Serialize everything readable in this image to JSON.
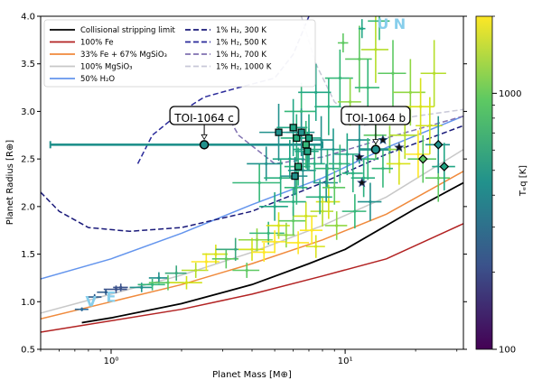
{
  "chart_data": {
    "type": "scatter",
    "title": "",
    "xlabel": "Planet Mass [M⊕]",
    "ylabel": "Planet Radius [R⊕]",
    "xscale": "log",
    "xlim": [
      0.5,
      32
    ],
    "ylim": [
      0.5,
      4.0
    ],
    "xticks": [
      {
        "value": 1,
        "label": "10⁰"
      },
      {
        "value": 10,
        "label": "10¹"
      }
    ],
    "yticks": [
      0.5,
      1.0,
      1.5,
      2.0,
      2.5,
      3.0,
      3.5,
      4.0
    ],
    "yticklabels": [
      "0.5",
      "1.0",
      "1.5",
      "2.0",
      "2.5",
      "3.0",
      "3.5",
      "4.0"
    ],
    "legend_position": "top-left",
    "legend": [
      {
        "label": "Collisional stripping limit",
        "color": "#000000",
        "dash": "solid"
      },
      {
        "label": "100% Fe",
        "color": "#b22222",
        "dash": "solid"
      },
      {
        "label": "33% Fe + 67% MgSiO₃",
        "color": "#f08a3c",
        "dash": "solid"
      },
      {
        "label": "100% MgSiO₃",
        "color": "#c8c8c8",
        "dash": "solid"
      },
      {
        "label": "50% H₂O",
        "color": "#6495ed",
        "dash": "solid"
      },
      {
        "label": "1% H₂, 300 K",
        "color": "#1a1a7a",
        "dash": "dashed"
      },
      {
        "label": "1% H₂, 500 K",
        "color": "#2a2a9a",
        "dash": "dashed"
      },
      {
        "label": "1% H₂, 700 K",
        "color": "#8070b0",
        "dash": "dashed"
      },
      {
        "label": "1% H₂, 1000 K",
        "color": "#c8c8d8",
        "dash": "dashed"
      }
    ],
    "colorbar": {
      "label": "Tₑq [K]",
      "ticks": [
        {
          "value": 100,
          "label": "100"
        },
        {
          "value": 1000,
          "label": "1000"
        }
      ],
      "range": [
        100,
        2000
      ],
      "colormap": [
        "#440154",
        "#3b528b",
        "#21918c",
        "#5ec962",
        "#fde725"
      ]
    },
    "curves": [
      {
        "name": "Collisional stripping limit",
        "color": "#000000",
        "dash": "solid",
        "width": 1.8,
        "points": [
          [
            0.75,
            0.78
          ],
          [
            1.0,
            0.83
          ],
          [
            2.0,
            0.98
          ],
          [
            4.0,
            1.18
          ],
          [
            7.0,
            1.4
          ],
          [
            10.0,
            1.55
          ],
          [
            15.0,
            1.8
          ],
          [
            20.0,
            1.98
          ],
          [
            32.0,
            2.25
          ]
        ]
      },
      {
        "name": "100% Fe",
        "color": "#b22222",
        "dash": "solid",
        "width": 1.5,
        "points": [
          [
            0.5,
            0.68
          ],
          [
            1.0,
            0.8
          ],
          [
            2.0,
            0.92
          ],
          [
            4.0,
            1.08
          ],
          [
            8.0,
            1.27
          ],
          [
            15.0,
            1.45
          ],
          [
            32.0,
            1.82
          ]
        ]
      },
      {
        "name": "33% Fe + 67% MgSiO₃",
        "color": "#f08a3c",
        "dash": "solid",
        "width": 1.5,
        "points": [
          [
            0.5,
            0.82
          ],
          [
            1.0,
            1.0
          ],
          [
            2.0,
            1.18
          ],
          [
            4.0,
            1.4
          ],
          [
            8.0,
            1.65
          ],
          [
            15.0,
            1.92
          ],
          [
            32.0,
            2.37
          ]
        ]
      },
      {
        "name": "100% MgSiO₃",
        "color": "#c8c8c8",
        "dash": "solid",
        "width": 1.5,
        "points": [
          [
            0.5,
            0.88
          ],
          [
            1.0,
            1.08
          ],
          [
            2.0,
            1.28
          ],
          [
            4.0,
            1.52
          ],
          [
            8.0,
            1.8
          ],
          [
            15.0,
            2.1
          ],
          [
            32.0,
            2.6
          ]
        ]
      },
      {
        "name": "50% H₂O",
        "color": "#6495ed",
        "dash": "solid",
        "width": 1.5,
        "points": [
          [
            0.5,
            1.24
          ],
          [
            1.0,
            1.45
          ],
          [
            2.0,
            1.72
          ],
          [
            4.0,
            2.02
          ],
          [
            8.0,
            2.3
          ],
          [
            15.0,
            2.62
          ],
          [
            32.0,
            2.95
          ]
        ]
      },
      {
        "name": "1% H₂, 300 K",
        "color": "#1a1a7a",
        "dash": "dashed",
        "width": 1.5,
        "points": [
          [
            0.5,
            2.15
          ],
          [
            0.6,
            1.95
          ],
          [
            0.8,
            1.78
          ],
          [
            1.2,
            1.74
          ],
          [
            2.0,
            1.78
          ],
          [
            4.0,
            1.95
          ],
          [
            8.0,
            2.25
          ],
          [
            15.0,
            2.55
          ],
          [
            32.0,
            2.85
          ]
        ]
      },
      {
        "name": "1% H₂, 500 K",
        "color": "#2a2a9a",
        "dash": "dashed",
        "width": 1.5,
        "points": [
          [
            1.3,
            2.45
          ],
          [
            1.5,
            2.75
          ],
          [
            2.0,
            3.0
          ],
          [
            2.5,
            3.15
          ],
          [
            3.5,
            3.25
          ],
          [
            5.0,
            3.35
          ],
          [
            6.0,
            3.6
          ],
          [
            7.0,
            4.0
          ]
        ]
      },
      {
        "name": "1% H₂, 700 K",
        "color": "#8070b0",
        "dash": "dashed",
        "width": 1.5,
        "points": [
          [
            3.0,
            3.05
          ],
          [
            3.5,
            2.75
          ],
          [
            5.0,
            2.45
          ],
          [
            8.0,
            2.52
          ],
          [
            15.0,
            2.72
          ],
          [
            32.0,
            2.95
          ]
        ]
      },
      {
        "name": "1% H₂, 1000 K",
        "color": "#c8c8d8",
        "dash": "dashed",
        "width": 1.5,
        "points": [
          [
            6.5,
            4.0
          ],
          [
            7.5,
            3.5
          ],
          [
            9.0,
            3.1
          ],
          [
            12.0,
            2.85
          ],
          [
            20.0,
            2.95
          ],
          [
            32.0,
            3.02
          ]
        ]
      }
    ],
    "points": [
      {
        "x": 0.75,
        "y": 0.92,
        "xerr": 0.05,
        "yerr": 0.02,
        "color": "#2c6a9a"
      },
      {
        "x": 0.85,
        "y": 1.05,
        "xerr": 0.06,
        "yerr": 0.03,
        "color": "#2c5a8a"
      },
      {
        "x": 0.95,
        "y": 1.1,
        "xerr": 0.08,
        "yerr": 0.03,
        "color": "#2c5a8a"
      },
      {
        "x": 1.05,
        "y": 1.13,
        "xerr": 0.12,
        "yerr": 0.04,
        "color": "#3b528b"
      },
      {
        "x": 1.1,
        "y": 1.15,
        "xerr": 0.08,
        "yerr": 0.04,
        "color": "#3b528b"
      },
      {
        "x": 1.35,
        "y": 1.15,
        "xerr": 0.15,
        "yerr": 0.05,
        "color": "#21918c"
      },
      {
        "x": 1.5,
        "y": 1.18,
        "xerr": 0.2,
        "yerr": 0.06,
        "color": "#35b779"
      },
      {
        "x": 1.6,
        "y": 1.25,
        "xerr": 0.15,
        "yerr": 0.06,
        "color": "#21918c"
      },
      {
        "x": 1.75,
        "y": 1.2,
        "xerr": 0.3,
        "yerr": 0.08,
        "color": "#5ec962"
      },
      {
        "x": 1.9,
        "y": 1.3,
        "xerr": 0.2,
        "yerr": 0.08,
        "color": "#3ba87e"
      },
      {
        "x": 2.1,
        "y": 1.2,
        "xerr": 0.35,
        "yerr": 0.07,
        "color": "#d0e11c"
      },
      {
        "x": 2.3,
        "y": 1.33,
        "xerr": 0.3,
        "yerr": 0.08,
        "color": "#b5de2b"
      },
      {
        "x": 2.55,
        "y": 1.42,
        "xerr": 0.35,
        "yerr": 0.09,
        "color": "#fde725"
      },
      {
        "x": 2.8,
        "y": 1.5,
        "xerr": 0.35,
        "yerr": 0.1,
        "color": "#d8e219"
      },
      {
        "x": 3.1,
        "y": 1.45,
        "xerr": 0.4,
        "yerr": 0.1,
        "color": "#5ec962"
      },
      {
        "x": 3.4,
        "y": 1.55,
        "xerr": 0.6,
        "yerr": 0.12,
        "color": "#3ba87e"
      },
      {
        "x": 3.8,
        "y": 1.33,
        "xerr": 0.5,
        "yerr": 0.08,
        "color": "#5ec962"
      },
      {
        "x": 4.0,
        "y": 1.55,
        "xerr": 0.5,
        "yerr": 0.12,
        "color": "#d8e219"
      },
      {
        "x": 4.2,
        "y": 1.65,
        "xerr": 0.7,
        "yerr": 0.12,
        "color": "#90d743"
      },
      {
        "x": 4.5,
        "y": 1.52,
        "xerr": 0.5,
        "yerr": 0.1,
        "color": "#fde725"
      },
      {
        "x": 4.7,
        "y": 1.72,
        "xerr": 0.8,
        "yerr": 0.12,
        "color": "#35b779"
      },
      {
        "x": 5.0,
        "y": 1.63,
        "xerr": 0.6,
        "yerr": 0.12,
        "color": "#fde725"
      },
      {
        "x": 5.2,
        "y": 1.8,
        "xerr": 0.6,
        "yerr": 0.14,
        "color": "#d8e219"
      },
      {
        "x": 5.6,
        "y": 1.7,
        "xerr": 0.5,
        "yerr": 0.13,
        "color": "#90d743"
      },
      {
        "x": 6.0,
        "y": 1.85,
        "xerr": 0.8,
        "yerr": 0.15,
        "color": "#5ec962"
      },
      {
        "x": 6.3,
        "y": 1.62,
        "xerr": 0.7,
        "yerr": 0.12,
        "color": "#fde725"
      },
      {
        "x": 6.8,
        "y": 1.9,
        "xerr": 0.8,
        "yerr": 0.15,
        "color": "#d0e11c"
      },
      {
        "x": 7.2,
        "y": 1.75,
        "xerr": 0.8,
        "yerr": 0.15,
        "color": "#fde725"
      },
      {
        "x": 7.5,
        "y": 1.58,
        "xerr": 0.7,
        "yerr": 0.12,
        "color": "#d8e219"
      },
      {
        "x": 8.0,
        "y": 1.95,
        "xerr": 0.9,
        "yerr": 0.16,
        "color": "#b5de2b"
      },
      {
        "x": 8.5,
        "y": 2.05,
        "xerr": 1.0,
        "yerr": 0.18,
        "color": "#d8e219"
      },
      {
        "x": 9.2,
        "y": 1.8,
        "xerr": 1.0,
        "yerr": 0.15,
        "color": "#90d743"
      },
      {
        "x": 4.3,
        "y": 2.25,
        "xerr": 1.0,
        "yerr": 0.2,
        "color": "#35b779"
      },
      {
        "x": 4.6,
        "y": 2.45,
        "xerr": 0.8,
        "yerr": 0.18,
        "color": "#21918c"
      },
      {
        "x": 5.3,
        "y": 2.3,
        "xerr": 0.8,
        "yerr": 0.2,
        "color": "#29af7f"
      },
      {
        "x": 5.8,
        "y": 2.5,
        "xerr": 0.9,
        "yerr": 0.2,
        "color": "#21a685"
      },
      {
        "x": 6.2,
        "y": 2.2,
        "xerr": 0.7,
        "yerr": 0.18,
        "color": "#35b779"
      },
      {
        "x": 6.6,
        "y": 2.38,
        "xerr": 0.9,
        "yerr": 0.2,
        "color": "#21918c"
      },
      {
        "x": 7.0,
        "y": 2.6,
        "xerr": 1.0,
        "yerr": 0.22,
        "color": "#21a685"
      },
      {
        "x": 7.4,
        "y": 2.45,
        "xerr": 0.8,
        "yerr": 0.2,
        "color": "#29af7f"
      },
      {
        "x": 7.9,
        "y": 2.7,
        "xerr": 1.0,
        "yerr": 0.25,
        "color": "#21918c"
      },
      {
        "x": 8.4,
        "y": 2.4,
        "xerr": 1.0,
        "yerr": 0.2,
        "color": "#35b779"
      },
      {
        "x": 8.9,
        "y": 2.6,
        "xerr": 1.1,
        "yerr": 0.22,
        "color": "#1f988b"
      },
      {
        "x": 9.5,
        "y": 2.45,
        "xerr": 1.0,
        "yerr": 0.2,
        "color": "#35b779"
      },
      {
        "x": 10.2,
        "y": 2.55,
        "xerr": 1.2,
        "yerr": 0.22,
        "color": "#21a685"
      },
      {
        "x": 10.8,
        "y": 2.35,
        "xerr": 1.1,
        "yerr": 0.2,
        "color": "#29af7f"
      },
      {
        "x": 11.5,
        "y": 2.7,
        "xerr": 1.3,
        "yerr": 0.25,
        "color": "#21918c"
      },
      {
        "x": 12.5,
        "y": 2.5,
        "xerr": 1.4,
        "yerr": 0.22,
        "color": "#35b779"
      },
      {
        "x": 13.5,
        "y": 2.75,
        "xerr": 1.5,
        "yerr": 0.25,
        "color": "#5ec962"
      },
      {
        "x": 15.5,
        "y": 2.6,
        "xerr": 2.0,
        "yerr": 0.25,
        "color": "#90d743"
      },
      {
        "x": 17.0,
        "y": 2.45,
        "xerr": 2.0,
        "yerr": 0.22,
        "color": "#d8e219"
      },
      {
        "x": 18.0,
        "y": 2.75,
        "xerr": 2.5,
        "yerr": 0.25,
        "color": "#b5de2b"
      },
      {
        "x": 20.5,
        "y": 2.55,
        "xerr": 2.5,
        "yerr": 0.25,
        "color": "#fde725"
      },
      {
        "x": 23.0,
        "y": 2.85,
        "xerr": 3.0,
        "yerr": 0.3,
        "color": "#d0e11c"
      },
      {
        "x": 25.0,
        "y": 2.3,
        "xerr": 3.0,
        "yerr": 0.25,
        "color": "#5ec962"
      },
      {
        "x": 6.5,
        "y": 3.0,
        "xerr": 1.0,
        "yerr": 0.3,
        "color": "#35b779"
      },
      {
        "x": 7.5,
        "y": 3.2,
        "xerr": 1.2,
        "yerr": 0.3,
        "color": "#21a685"
      },
      {
        "x": 8.5,
        "y": 3.05,
        "xerr": 1.1,
        "yerr": 0.3,
        "color": "#29af7f"
      },
      {
        "x": 9.5,
        "y": 3.35,
        "xerr": 1.3,
        "yerr": 0.3,
        "color": "#35b779"
      },
      {
        "x": 10.5,
        "y": 3.1,
        "xerr": 1.2,
        "yerr": 0.25,
        "color": "#90d743"
      },
      {
        "x": 11.5,
        "y": 3.55,
        "xerr": 1.5,
        "yerr": 0.35,
        "color": "#5ec962"
      },
      {
        "x": 12.5,
        "y": 3.25,
        "xerr": 1.5,
        "yerr": 0.3,
        "color": "#35b779"
      },
      {
        "x": 13.5,
        "y": 3.65,
        "xerr": 1.8,
        "yerr": 0.35,
        "color": "#b5de2b"
      },
      {
        "x": 16.0,
        "y": 3.4,
        "xerr": 2.2,
        "yerr": 0.35,
        "color": "#5ec962"
      },
      {
        "x": 19.0,
        "y": 3.2,
        "xerr": 3.0,
        "yerr": 0.35,
        "color": "#90d743"
      },
      {
        "x": 21.0,
        "y": 3.05,
        "xerr": 3.0,
        "yerr": 0.3,
        "color": "#d8e219"
      },
      {
        "x": 24.0,
        "y": 3.4,
        "xerr": 3.0,
        "yerr": 0.35,
        "color": "#b5de2b"
      },
      {
        "x": 14.0,
        "y": 3.95,
        "xerr": 1.5,
        "yerr": 0.2,
        "color": "#35b779"
      },
      {
        "x": 9.8,
        "y": 3.72,
        "xerr": 0.5,
        "yerr": 0.1,
        "color": "#5ec962"
      },
      {
        "x": 11.8,
        "y": 3.87,
        "xerr": 0.4,
        "yerr": 0.1,
        "color": "#21a685"
      },
      {
        "x": 12.8,
        "y": 2.05,
        "xerr": 1.5,
        "yerr": 0.2,
        "color": "#21918c"
      },
      {
        "x": 11.0,
        "y": 1.95,
        "xerr": 1.3,
        "yerr": 0.18,
        "color": "#35b779"
      },
      {
        "x": 7.8,
        "y": 2.1,
        "xerr": 1.0,
        "yerr": 0.18,
        "color": "#29af7f"
      },
      {
        "x": 8.3,
        "y": 2.25,
        "xerr": 1.0,
        "yerr": 0.2,
        "color": "#21918c"
      },
      {
        "x": 9.0,
        "y": 2.2,
        "xerr": 1.0,
        "yerr": 0.18,
        "color": "#5ec962"
      },
      {
        "x": 12.0,
        "y": 2.3,
        "xerr": 1.4,
        "yerr": 0.2,
        "color": "#29af7f"
      },
      {
        "x": 14.5,
        "y": 2.4,
        "xerr": 1.5,
        "yerr": 0.2,
        "color": "#35b779"
      },
      {
        "x": 5.0,
        "y": 2.0,
        "xerr": 0.7,
        "yerr": 0.15,
        "color": "#21a685"
      },
      {
        "x": 6.0,
        "y": 2.05,
        "xerr": 0.8,
        "yerr": 0.15,
        "color": "#29af7f"
      }
    ],
    "squares": [
      {
        "x": 5.2,
        "y": 2.78,
        "xerr": 0.9,
        "yerr": 0.3,
        "color": "#21918c"
      },
      {
        "x": 6.0,
        "y": 2.83,
        "xerr": 0.9,
        "yerr": 0.3,
        "color": "#21a685"
      },
      {
        "x": 6.2,
        "y": 2.72,
        "xerr": 0.9,
        "yerr": 0.25,
        "color": "#29af7f"
      },
      {
        "x": 6.5,
        "y": 2.78,
        "xerr": 0.9,
        "yerr": 0.25,
        "color": "#21918c"
      },
      {
        "x": 6.8,
        "y": 2.65,
        "xerr": 0.9,
        "yerr": 0.25,
        "color": "#35b779"
      },
      {
        "x": 7.0,
        "y": 2.72,
        "xerr": 0.9,
        "yerr": 0.25,
        "color": "#21a685"
      },
      {
        "x": 6.3,
        "y": 2.42,
        "xerr": 0.8,
        "yerr": 0.2,
        "color": "#29af7f"
      },
      {
        "x": 6.1,
        "y": 2.32,
        "xerr": 0.8,
        "yerr": 0.2,
        "color": "#21918c"
      },
      {
        "x": 6.9,
        "y": 2.58,
        "xerr": 0.8,
        "yerr": 0.2,
        "color": "#21a685"
      }
    ],
    "stars": [
      {
        "x": 11.5,
        "y": 2.52,
        "color": "#3b528b"
      },
      {
        "x": 11.8,
        "y": 2.25,
        "color": "#3b528b"
      },
      {
        "x": 14.5,
        "y": 2.7,
        "color": "#2c5a8a"
      },
      {
        "x": 17.0,
        "y": 2.62,
        "color": "#3b528b"
      }
    ],
    "diamonds": [
      {
        "x": 21.5,
        "y": 2.5,
        "xerr": 3.0,
        "yerr": 0.25,
        "color": "#5ec962"
      },
      {
        "x": 25.0,
        "y": 2.65,
        "xerr": 3.0,
        "yerr": 0.3,
        "color": "#21918c"
      },
      {
        "x": 26.5,
        "y": 2.42,
        "xerr": 3.0,
        "yerr": 0.25,
        "color": "#21a685"
      }
    ],
    "highlighted": [
      {
        "name": "TOI-1064 c",
        "x": 2.5,
        "y": 2.65,
        "xlo": 0.55,
        "xhi": 8.0,
        "color": "#21918c"
      },
      {
        "name": "TOI-1064 b",
        "x": 13.5,
        "y": 2.6,
        "xlo": 11.5,
        "xhi": 15.5,
        "color": "#21918c"
      }
    ],
    "annotations": [
      {
        "text": "TOI-1064 c",
        "x": 2.5,
        "y": 2.9
      },
      {
        "text": "TOI-1064 b",
        "x": 13.5,
        "y": 2.9
      }
    ],
    "solar_system": [
      {
        "text": "V",
        "x": 0.82,
        "y": 0.95,
        "color": "#87ceeb"
      },
      {
        "text": "E",
        "x": 1.0,
        "y": 1.0,
        "color": "#87ceeb"
      },
      {
        "text": "U",
        "x": 14.5,
        "y": 4.05,
        "color": "#87ceeb"
      },
      {
        "text": "N",
        "x": 17.1,
        "y": 3.88,
        "color": "#87ceeb"
      }
    ]
  }
}
